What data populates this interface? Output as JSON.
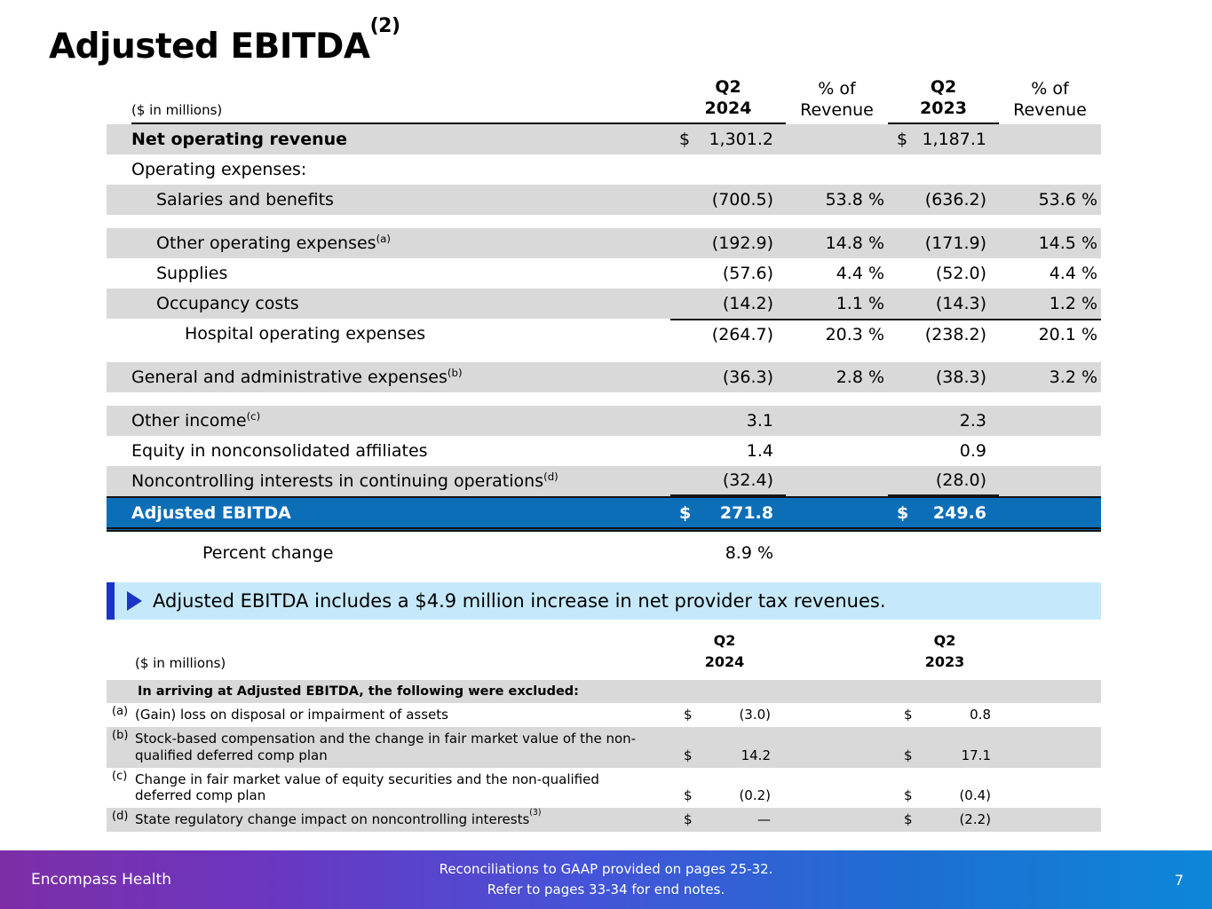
{
  "title": {
    "text": "Adjusted EBITDA",
    "sup": "(2)"
  },
  "colors": {
    "shade": "#d9d9d9",
    "ebitda_blue": "#0d6eb8",
    "callout_bg": "#c5e9fa",
    "callout_accent": "#1a35c4",
    "footer_left": "#7d2ea6",
    "footer_mid": "#4553d8",
    "footer_right": "#0d87d8"
  },
  "main_table": {
    "unit_label": "($ in millions)",
    "headers": {
      "q2_2024": [
        "Q2",
        "2024"
      ],
      "pct_2024": [
        "% of",
        "Revenue"
      ],
      "q2_2023": [
        "Q2",
        "2023"
      ],
      "pct_2023": [
        "% of",
        "Revenue"
      ]
    },
    "rows": [
      {
        "label": "Net operating revenue",
        "bold": true,
        "shade": true,
        "indent": 0,
        "d24": "$",
        "v24": "1,301.2",
        "d23": "$",
        "v23": "1,187.1"
      },
      {
        "label": "Operating expenses:",
        "indent": 0
      },
      {
        "label": "Salaries and benefits",
        "shade": true,
        "indent": 1,
        "v24": "(700.5)",
        "p24": "53.8 %",
        "v23": "(636.2)",
        "p23": "53.6 %"
      },
      {
        "label": "Other operating expenses",
        "sup": "(a)",
        "shade": true,
        "indent": 1,
        "gap": true,
        "v24": "(192.9)",
        "p24": "14.8 %",
        "v23": "(171.9)",
        "p23": "14.5 %"
      },
      {
        "label": "Supplies",
        "indent": 1,
        "v24": "(57.6)",
        "p24": "4.4 %",
        "v23": "(52.0)",
        "p23": "4.4 %"
      },
      {
        "label": "Occupancy costs",
        "shade": true,
        "indent": 1,
        "v24": "(14.2)",
        "p24": "1.1 %",
        "v23": "(14.3)",
        "p23": "1.2 %"
      },
      {
        "label": "Hospital operating expenses",
        "indent": 2,
        "top_line": true,
        "v24": "(264.7)",
        "p24": "20.3 %",
        "v23": "(238.2)",
        "p23": "20.1 %"
      },
      {
        "label": "General and administrative expenses",
        "sup": "(b)",
        "shade": true,
        "indent": 0,
        "gap": true,
        "v24": "(36.3)",
        "p24": "2.8 %",
        "v23": "(38.3)",
        "p23": "3.2 %"
      },
      {
        "label": "Other income",
        "sup": "(c)",
        "shade": true,
        "indent": 0,
        "gap": true,
        "v24": "3.1",
        "v23": "2.3"
      },
      {
        "label": "Equity in nonconsolidated affiliates",
        "indent": 0,
        "v24": "1.4",
        "v23": "0.9"
      },
      {
        "label": "Noncontrolling interests in continuing operations",
        "sup": "(d)",
        "shade": true,
        "indent": 0,
        "value_underline": true,
        "v24": "(32.4)",
        "v23": "(28.0)"
      },
      {
        "label": "Adjusted EBITDA",
        "ebitda": true,
        "indent": 0,
        "d24": "$",
        "v24": "271.8",
        "d23": "$",
        "v23": "249.6"
      },
      {
        "label": "Percent change",
        "indent": 3,
        "gap_small": true,
        "v24": "8.9 %"
      }
    ]
  },
  "callout": {
    "text": "Adjusted EBITDA includes a $4.9 million increase in net provider tax revenues."
  },
  "notes_table": {
    "unit_label": "($ in millions)",
    "headers": {
      "q2_2024": [
        "Q2",
        "2024"
      ],
      "q2_2023": [
        "Q2",
        "2023"
      ]
    },
    "section_header": "In arriving at Adjusted EBITDA, the following were excluded:",
    "rows": [
      {
        "marker": "(a)",
        "label": "(Gain) loss on disposal or impairment of assets",
        "d24": "$",
        "v24": "(3.0)",
        "d23": "$",
        "v23": "0.8"
      },
      {
        "marker": "(b)",
        "label": "Stock-based compensation and the change in fair market value of the non-qualified deferred comp plan",
        "shade": true,
        "d24": "$",
        "v24": "14.2",
        "d23": "$",
        "v23": "17.1"
      },
      {
        "marker": "(c)",
        "label": "Change in fair market value of equity securities and the non-qualified deferred comp plan",
        "d24": "$",
        "v24": "(0.2)",
        "d23": "$",
        "v23": "(0.4)"
      },
      {
        "marker": "(d)",
        "label": "State regulatory change impact on noncontrolling interests",
        "label_sup": "(3)",
        "shade": true,
        "d24": "$",
        "v24": "—",
        "d23": "$",
        "v23": "(2.2)"
      }
    ]
  },
  "footer": {
    "brand": "Encompass Health",
    "note_line1": "Reconciliations to GAAP provided on pages 25-32.",
    "note_line2": "Refer to pages 33-34 for end notes.",
    "page_number": "7"
  }
}
